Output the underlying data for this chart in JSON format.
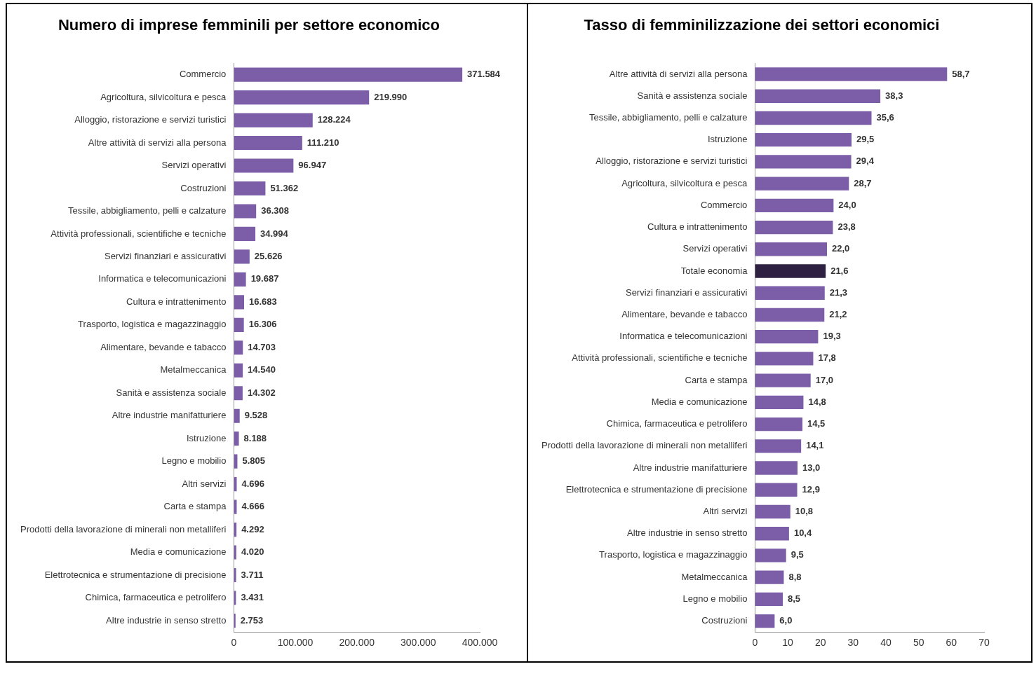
{
  "chart_data": [
    {
      "type": "bar",
      "orientation": "horizontal",
      "title": "Numero di imprese femminili per settore economico",
      "grid": false,
      "categories": [
        "Commercio",
        "Agricoltura, silvicoltura e pesca",
        "Alloggio, ristorazione e servizi turistici",
        "Altre attività di servizi alla persona",
        "Servizi operativi",
        "Costruzioni",
        "Tessile, abbigliamento, pelli e calzature",
        "Attività professionali, scientifiche e tecniche",
        "Servizi finanziari e assicurativi",
        "Informatica e telecomunicazioni",
        "Cultura e intrattenimento",
        "Trasporto, logistica e magazzinaggio",
        "Alimentare, bevande e tabacco",
        "Metalmeccanica",
        "Sanità e assistenza sociale",
        "Altre industrie manifatturiere",
        "Istruzione",
        "Legno e mobilio",
        "Altri servizi",
        "Carta e stampa",
        "Prodotti della lavorazione di minerali non metalliferi",
        "Media e comunicazione",
        "Elettrotecnica e strumentazione di precisione",
        "Chimica, farmaceutica e petrolifero",
        "Altre industrie in senso stretto"
      ],
      "values": [
        371584,
        219990,
        128224,
        111210,
        96947,
        51362,
        36308,
        34994,
        25626,
        19687,
        16683,
        16306,
        14703,
        14540,
        14302,
        9528,
        8188,
        5805,
        4696,
        4666,
        4292,
        4020,
        3711,
        3431,
        2753
      ],
      "value_labels": [
        "371.584",
        "219.990",
        "128.224",
        "111.210",
        "96.947",
        "51.362",
        "36.308",
        "34.994",
        "25.626",
        "19.687",
        "16.683",
        "16.306",
        "14.703",
        "14.540",
        "14.302",
        "9.528",
        "8.188",
        "5.805",
        "4.696",
        "4.666",
        "4.292",
        "4.020",
        "3.711",
        "3.431",
        "2.753"
      ],
      "color": "#7b5ea7",
      "xlim": [
        0,
        400000
      ],
      "xticks": [
        0,
        {
          "value": 100000,
          "label": "100.000"
        },
        {
          "value": 200000,
          "label": "200.000"
        },
        {
          "value": 300000,
          "label": "300.000"
        },
        {
          "value": 400000,
          "label": "400.000"
        }
      ]
    },
    {
      "type": "bar",
      "orientation": "horizontal",
      "title": "Tasso di femminilizzazione dei settori economici",
      "grid": false,
      "categories": [
        "Altre attività di servizi alla persona",
        "Sanità e assistenza sociale",
        "Tessile, abbigliamento, pelli e calzature",
        "Istruzione",
        "Alloggio, ristorazione e servizi turistici",
        "Agricoltura, silvicoltura e pesca",
        "Commercio",
        "Cultura e intrattenimento",
        "Servizi operativi",
        "Totale economia",
        "Servizi finanziari e assicurativi",
        "Alimentare, bevande e tabacco",
        "Informatica e telecomunicazioni",
        "Attività professionali, scientifiche e tecniche",
        "Carta e stampa",
        "Media e comunicazione",
        "Chimica, farmaceutica e petrolifero",
        "Prodotti della lavorazione di minerali non metalliferi",
        "Altre industrie manifatturiere",
        "Elettrotecnica e strumentazione di precisione",
        "Altri servizi",
        "Altre industrie in senso stretto",
        "Trasporto, logistica e magazzinaggio",
        "Metalmeccanica",
        "Legno e mobilio",
        "Costruzioni"
      ],
      "values": [
        58.7,
        38.3,
        35.6,
        29.5,
        29.4,
        28.7,
        24.0,
        23.8,
        22.0,
        21.6,
        21.3,
        21.2,
        19.3,
        17.8,
        17.0,
        14.8,
        14.5,
        14.1,
        13.0,
        12.9,
        10.8,
        10.4,
        9.5,
        8.8,
        8.5,
        6.0
      ],
      "value_labels": [
        "58,7",
        "38,3",
        "35,6",
        "29,5",
        "29,4",
        "28,7",
        "24,0",
        "23,8",
        "22,0",
        "21,6",
        "21,3",
        "21,2",
        "19,3",
        "17,8",
        "17,0",
        "14,8",
        "14,5",
        "14,1",
        "13,0",
        "12,9",
        "10,8",
        "10,4",
        "9,5",
        "8,8",
        "8,5",
        "6,0"
      ],
      "colors": [
        "#7b5ea7",
        "#7b5ea7",
        "#7b5ea7",
        "#7b5ea7",
        "#7b5ea7",
        "#7b5ea7",
        "#7b5ea7",
        "#7b5ea7",
        "#7b5ea7",
        "#2e2142",
        "#7b5ea7",
        "#7b5ea7",
        "#7b5ea7",
        "#7b5ea7",
        "#7b5ea7",
        "#7b5ea7",
        "#7b5ea7",
        "#7b5ea7",
        "#7b5ea7",
        "#7b5ea7",
        "#7b5ea7",
        "#7b5ea7",
        "#7b5ea7",
        "#7b5ea7",
        "#7b5ea7",
        "#7b5ea7"
      ],
      "xlim": [
        0,
        70
      ],
      "xticks": [
        0,
        10,
        20,
        30,
        40,
        50,
        60,
        70
      ]
    }
  ]
}
